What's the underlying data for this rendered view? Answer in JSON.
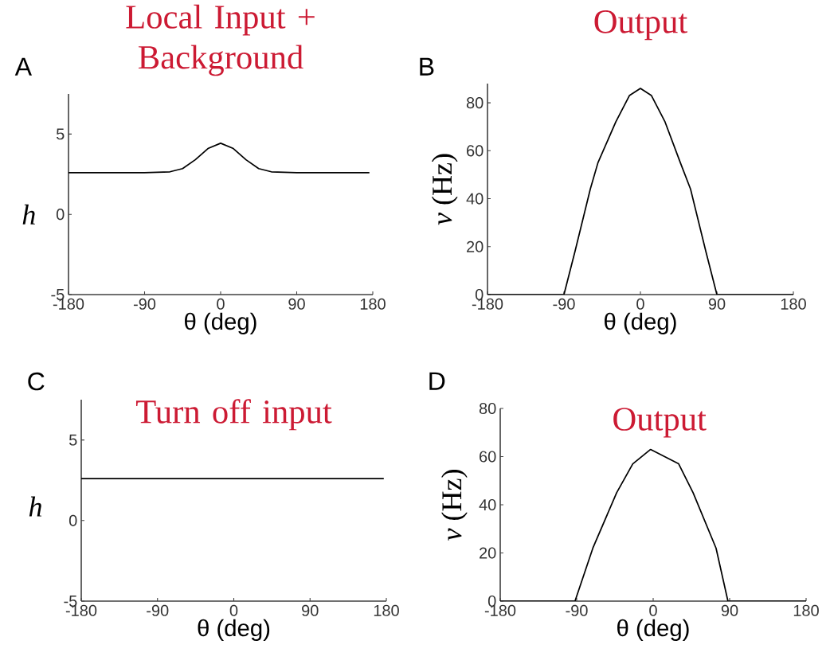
{
  "chart_data": [
    {
      "type": "line",
      "title": "Local Input + Background",
      "xlabel": "θ (deg)",
      "ylabel": "*h*",
      "annotations": [
        "A"
      ],
      "xlim": [
        -180,
        180
      ],
      "ylim": [
        -5,
        7.5
      ],
      "xticks": [
        -180,
        -90,
        0,
        90,
        180
      ],
      "yticks": [
        -5,
        0,
        5
      ],
      "series": [
        {
          "color": "#000000",
          "x": [
            -180,
            -90,
            -60,
            -45,
            -30,
            -15,
            0,
            15,
            30,
            45,
            60,
            90,
            176
          ],
          "values": [
            2.6,
            2.6,
            2.65,
            2.85,
            3.4,
            4.1,
            4.43,
            4.1,
            3.4,
            2.85,
            2.65,
            2.6,
            2.6
          ]
        }
      ]
    },
    {
      "type": "line",
      "title": "Output",
      "xlabel": "θ (deg)",
      "ylabel": "*v* (Hz)",
      "annotations": [
        "B"
      ],
      "xlim": [
        -180,
        180
      ],
      "ylim": [
        0,
        88
      ],
      "xticks": [
        -180,
        -90,
        0,
        90,
        180
      ],
      "yticks": [
        0,
        20,
        40,
        60,
        80
      ],
      "series": [
        {
          "color": "#000000",
          "x": [
            -180,
            -90,
            -77,
            -59,
            -50,
            -29,
            -13,
            0,
            13,
            29,
            47,
            59,
            77,
            90,
            180
          ],
          "values": [
            0,
            0,
            18,
            44,
            55,
            72,
            83,
            86,
            83,
            72,
            55,
            44,
            18,
            0,
            0
          ]
        }
      ]
    },
    {
      "type": "line",
      "title": "Turn off input",
      "xlabel": "θ (deg)",
      "ylabel": "*h*",
      "annotations": [
        "C"
      ],
      "xlim": [
        -180,
        180
      ],
      "ylim": [
        -5,
        7.5
      ],
      "xticks": [
        -180,
        -90,
        0,
        90,
        180
      ],
      "yticks": [
        -5,
        0,
        5
      ],
      "series": [
        {
          "color": "#000000",
          "x": [
            -180,
            177
          ],
          "values": [
            2.6,
            2.6
          ]
        }
      ]
    },
    {
      "type": "line",
      "title": "Output",
      "xlabel": "θ (deg)",
      "ylabel": "*v* (Hz)",
      "annotations": [
        "D"
      ],
      "xlim": [
        -180,
        180
      ],
      "ylim": [
        0,
        80
      ],
      "xticks": [
        -180,
        -90,
        0,
        90,
        180
      ],
      "yticks": [
        0,
        20,
        40,
        60,
        80
      ],
      "series": [
        {
          "color": "#000000",
          "x": [
            -180,
            -92,
            -71,
            -43,
            -24,
            -3,
            30,
            47,
            74,
            88,
            180
          ],
          "values": [
            0,
            0,
            22,
            45,
            57,
            63,
            57,
            45,
            22,
            0,
            0
          ]
        }
      ]
    }
  ]
}
